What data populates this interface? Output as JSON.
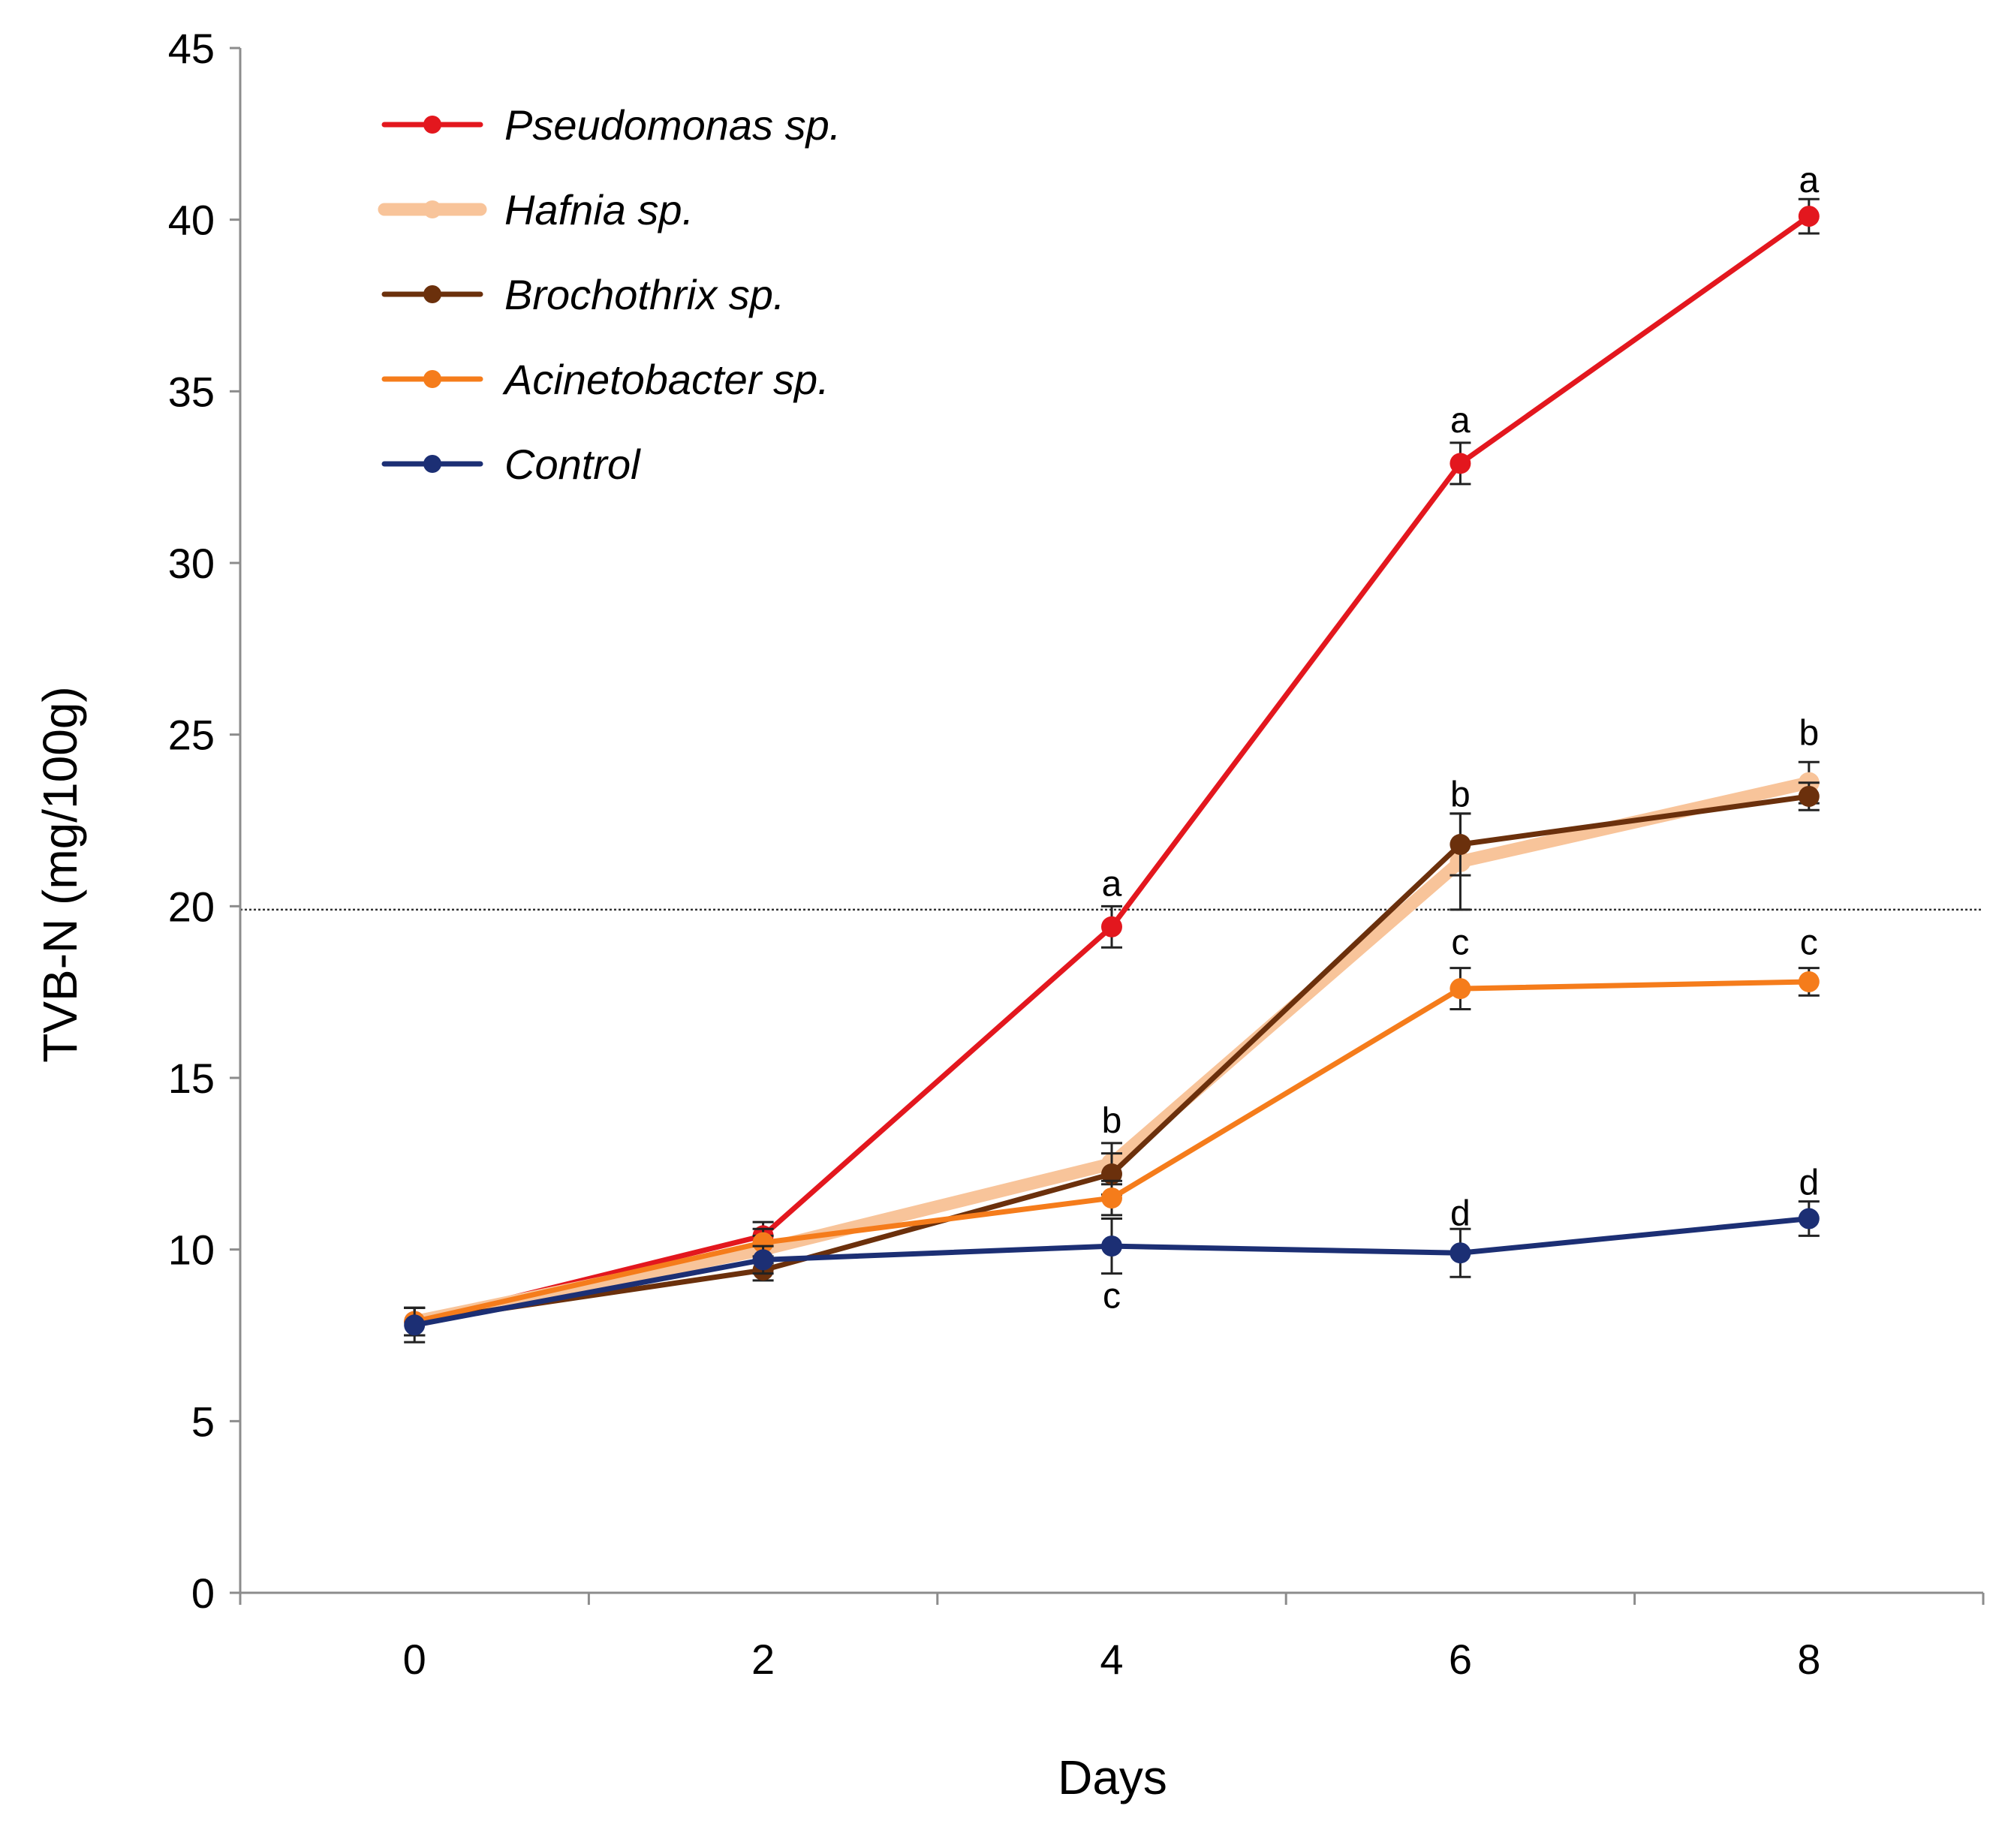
{
  "chart_data": {
    "type": "line",
    "title": "",
    "xlabel": "Days",
    "ylabel": "TVB-N (mg/100g)",
    "x": [
      0,
      2,
      4,
      6,
      8
    ],
    "x_ticks": [
      "0",
      "2",
      "4",
      "6",
      "8"
    ],
    "y_ticks": [
      "0",
      "5",
      "10",
      "15",
      "20",
      "25",
      "30",
      "35",
      "40",
      "45"
    ],
    "xlim": [
      -1,
      9
    ],
    "ylim": [
      0,
      45
    ],
    "reference_line": 19.9,
    "legend_position": "top-left",
    "series": [
      {
        "name": "Pseudomonas sp.",
        "color": "#e3171e",
        "values": [
          7.9,
          10.4,
          19.4,
          32.9,
          40.1
        ],
        "errors": [
          0.4,
          0.4,
          0.6,
          0.6,
          0.5
        ],
        "line_width": 7
      },
      {
        "name": "Hafnia sp.",
        "color": "#f8c49a",
        "values": [
          7.9,
          10.0,
          12.5,
          21.3,
          23.6
        ],
        "errors": [
          0.4,
          0.4,
          0.6,
          1.4,
          0.6
        ],
        "line_width": 17
      },
      {
        "name": "Brochothrix sp.",
        "color": "#6b300c",
        "values": [
          7.9,
          9.4,
          12.2,
          21.8,
          23.2
        ],
        "errors": [
          0.4,
          0.3,
          0.6,
          0.9,
          0.4
        ],
        "line_width": 7
      },
      {
        "name": "Acinetobacter sp.",
        "color": "#f57c1b",
        "values": [
          7.9,
          10.2,
          11.5,
          17.6,
          17.8
        ],
        "errors": [
          0.4,
          0.4,
          0.5,
          0.6,
          0.4
        ],
        "line_width": 7
      },
      {
        "name": "Control",
        "color": "#1c2f74",
        "values": [
          7.8,
          9.7,
          10.1,
          9.9,
          10.9
        ],
        "errors": [
          0.5,
          0.4,
          0.8,
          0.7,
          0.5
        ],
        "line_width": 7
      }
    ],
    "significance_labels": [
      {
        "x": 4,
        "y": 20.3,
        "text": "a"
      },
      {
        "x": 6,
        "y": 33.8,
        "text": "a"
      },
      {
        "x": 8,
        "y": 40.8,
        "text": "a"
      },
      {
        "x": 4,
        "y": 13.4,
        "text": "b"
      },
      {
        "x": 6,
        "y": 22.9,
        "text": "b"
      },
      {
        "x": 8,
        "y": 24.7,
        "text": "b"
      },
      {
        "x": 6,
        "y": 18.6,
        "text": "c"
      },
      {
        "x": 8,
        "y": 18.6,
        "text": "c"
      },
      {
        "x": 4,
        "y": 8.3,
        "text": "c"
      },
      {
        "x": 6,
        "y": 10.7,
        "text": "d"
      },
      {
        "x": 8,
        "y": 11.6,
        "text": "d"
      }
    ]
  }
}
